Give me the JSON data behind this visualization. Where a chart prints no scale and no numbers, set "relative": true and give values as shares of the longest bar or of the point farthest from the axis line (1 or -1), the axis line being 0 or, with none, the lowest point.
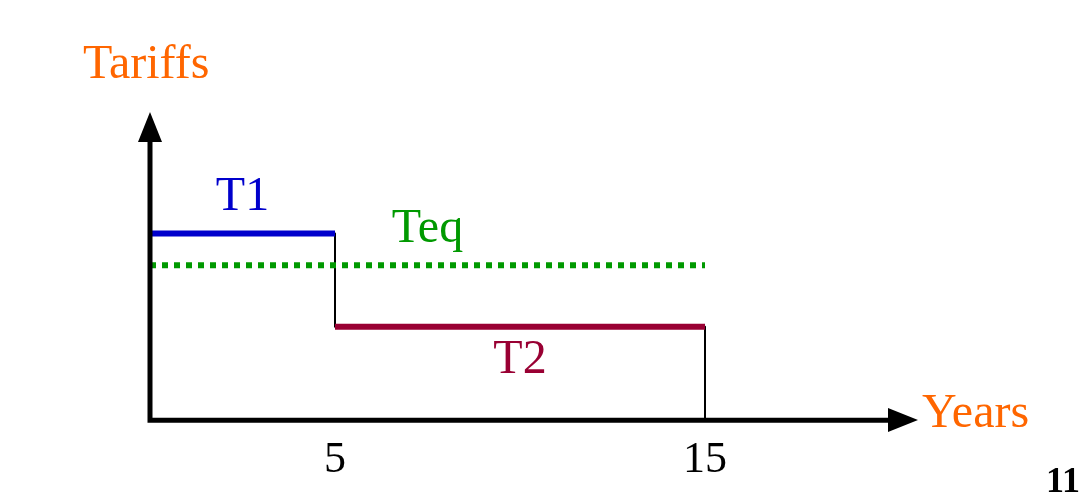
{
  "chart_data": {
    "type": "line",
    "relative": true,
    "xlabel": "Years",
    "ylabel": "Tariffs",
    "xlim": [
      0,
      20
    ],
    "xticks": [
      5,
      15
    ],
    "grid": false,
    "legend": false,
    "marker": "none",
    "series": [
      {
        "name": "T1",
        "color": "#0000cc",
        "x": [
          0,
          5
        ],
        "values": [
          1,
          1
        ]
      },
      {
        "name": "Teq",
        "color": "#009900",
        "x": [
          0,
          15
        ],
        "values": [
          0.83,
          0.83
        ],
        "line_style": "dotted"
      },
      {
        "name": "T2",
        "color": "#990033",
        "x": [
          5,
          15
        ],
        "values": [
          0.5,
          0.5
        ]
      },
      {
        "color": "#000000",
        "x": [
          5,
          5
        ],
        "values": [
          1,
          0.5
        ]
      },
      {
        "color": "#000000",
        "x": [
          15,
          15
        ],
        "values": [
          0.5,
          0
        ]
      }
    ],
    "annotations": [
      "11"
    ]
  }
}
